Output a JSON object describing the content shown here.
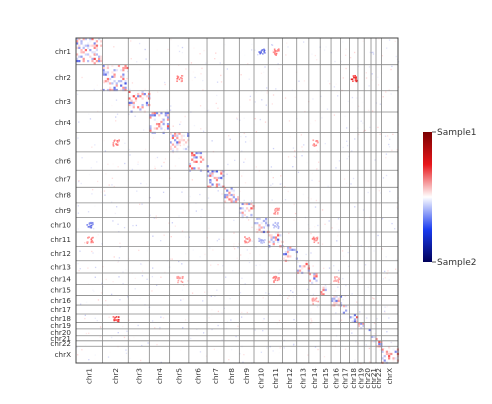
{
  "chart_data": {
    "type": "heatmap",
    "title": "",
    "xlabel": "",
    "ylabel": "",
    "chromosomes": [
      "chr1",
      "chr2",
      "chr3",
      "chr4",
      "chr5",
      "chr6",
      "chr7",
      "chr8",
      "chr9",
      "chr10",
      "chr11",
      "chr12",
      "chr13",
      "chr14",
      "chr15",
      "chr16",
      "chr17",
      "chr18",
      "chr19",
      "chr20",
      "chr21",
      "chr22",
      "chrX"
    ],
    "chromosome_sizes_mb": [
      249,
      243,
      198,
      191,
      181,
      171,
      159,
      145,
      138,
      134,
      135,
      133,
      114,
      107,
      102,
      90,
      83,
      80,
      59,
      64,
      47,
      51,
      156
    ],
    "color_scale": {
      "top_label": "Sample1",
      "bottom_label": "Sample2",
      "colors": [
        "#7a0000",
        "#e8161b",
        "#ffffff",
        "#1a3cf0",
        "#00005a"
      ]
    },
    "interchromosomal_highlights": [
      {
        "chr_a": "chr1",
        "chr_b": "chr10",
        "intensity": -0.7
      },
      {
        "chr_a": "chr1",
        "chr_b": "chr11",
        "intensity": 0.6
      },
      {
        "chr_a": "chr2",
        "chr_b": "chr5",
        "intensity": 0.6
      },
      {
        "chr_a": "chr2",
        "chr_b": "chr18",
        "intensity": 0.9
      },
      {
        "chr_a": "chr5",
        "chr_b": "chr14",
        "intensity": 0.5
      },
      {
        "chr_a": "chr9",
        "chr_b": "chr11",
        "intensity": 0.5
      },
      {
        "chr_a": "chr11",
        "chr_b": "chr14",
        "intensity": 0.6
      },
      {
        "chr_a": "chr14",
        "chr_b": "chr16",
        "intensity": 0.4
      },
      {
        "chr_a": "chr10",
        "chr_b": "chr11",
        "intensity": -0.4
      }
    ]
  }
}
